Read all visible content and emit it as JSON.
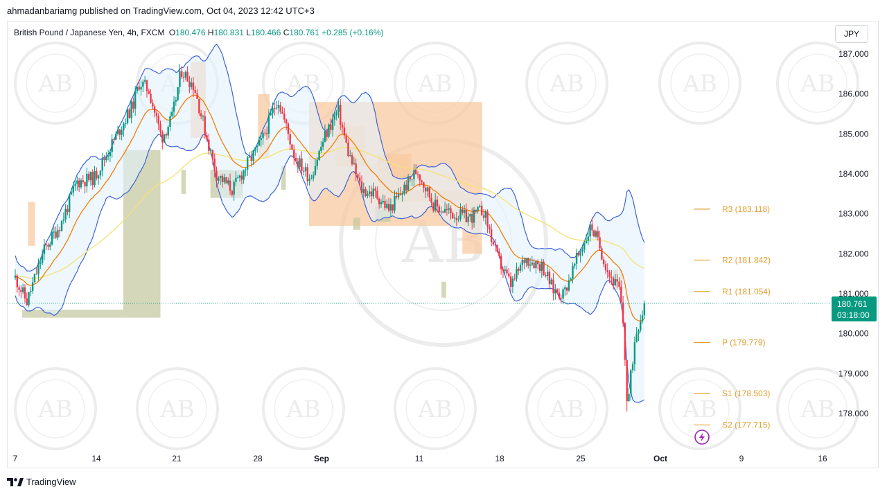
{
  "header": {
    "published_text": "ahmadanbariamg published on TradingView.com, Oct 04, 2023 12:42 UTC+3"
  },
  "legend": {
    "symbol": "British Pound / Japanese Yen, 4h, FXCM",
    "open_label": "O",
    "open": "180.476",
    "high_label": "H",
    "high": "180.831",
    "low_label": "L",
    "low": "180.466",
    "close_label": "C",
    "close": "180.761",
    "change": "+0.285 (+0.16%)"
  },
  "currency_button": "JPY",
  "price_tag": {
    "price": "180.761",
    "countdown": "03:18:00"
  },
  "footer": {
    "brand": "TradingView"
  },
  "colors": {
    "up": "#089981",
    "down": "#f23645",
    "ema_fast": "#f57c00",
    "ema_slow": "#f5e27a",
    "bands": "#3d62d6",
    "band_fill": "#e3f2fd",
    "supply": "#f8c9a0",
    "demand": "#c5c9a2",
    "pivot": "#e0a030",
    "tag": "#089981"
  },
  "watermark": {
    "icon": "arabian-business-academy-seal",
    "text": "AB"
  },
  "chart_data": {
    "type": "candlestick",
    "timeframe": "4h",
    "ylim": [
      177.3,
      187.5
    ],
    "y_ticks": [
      "187.000",
      "186.000",
      "185.000",
      "184.000",
      "183.000",
      "182.000",
      "181.000",
      "180.000",
      "179.000",
      "178.000"
    ],
    "x_ticks": [
      "7",
      "14",
      "21",
      "28",
      "Sep",
      "11",
      "18",
      "25",
      "Oct",
      "9",
      "16"
    ],
    "last_price": 180.761,
    "path_points": [
      {
        "d": 0,
        "p": 181.4
      },
      {
        "d": 1,
        "p": 180.8
      },
      {
        "d": 2.5,
        "p": 182.1
      },
      {
        "d": 4,
        "p": 182.8
      },
      {
        "d": 5.3,
        "p": 183.8
      },
      {
        "d": 6.8,
        "p": 183.9
      },
      {
        "d": 8.6,
        "p": 184.9
      },
      {
        "d": 10.1,
        "p": 185.7
      },
      {
        "d": 10.7,
        "p": 186.3
      },
      {
        "d": 11.5,
        "p": 186.1
      },
      {
        "d": 12.6,
        "p": 184.9
      },
      {
        "d": 13.5,
        "p": 185.4
      },
      {
        "d": 14.3,
        "p": 186.6
      },
      {
        "d": 15.4,
        "p": 186.2
      },
      {
        "d": 16.5,
        "p": 184.9
      },
      {
        "d": 17.3,
        "p": 184.0
      },
      {
        "d": 18.7,
        "p": 183.6
      },
      {
        "d": 20.1,
        "p": 184.3
      },
      {
        "d": 21.2,
        "p": 184.8
      },
      {
        "d": 22.6,
        "p": 185.9
      },
      {
        "d": 24.1,
        "p": 184.4
      },
      {
        "d": 25.4,
        "p": 183.9
      },
      {
        "d": 26.6,
        "p": 184.9
      },
      {
        "d": 27.8,
        "p": 185.6
      },
      {
        "d": 28.6,
        "p": 184.6
      },
      {
        "d": 29.8,
        "p": 183.6
      },
      {
        "d": 31.0,
        "p": 183.5
      },
      {
        "d": 32.2,
        "p": 183.1
      },
      {
        "d": 33.4,
        "p": 183.6
      },
      {
        "d": 34.6,
        "p": 184.1
      },
      {
        "d": 36.1,
        "p": 183.2
      },
      {
        "d": 37.6,
        "p": 183.0
      },
      {
        "d": 39.1,
        "p": 182.9
      },
      {
        "d": 40.3,
        "p": 183.1
      },
      {
        "d": 41.5,
        "p": 181.9
      },
      {
        "d": 42.7,
        "p": 181.2
      },
      {
        "d": 43.9,
        "p": 181.9
      },
      {
        "d": 45.4,
        "p": 181.7
      },
      {
        "d": 46.3,
        "p": 181.1
      },
      {
        "d": 47.2,
        "p": 181.0
      },
      {
        "d": 48.4,
        "p": 181.9
      },
      {
        "d": 49.6,
        "p": 182.7
      },
      {
        "d": 50.3,
        "p": 182.2
      },
      {
        "d": 51.1,
        "p": 181.5
      },
      {
        "d": 52.0,
        "p": 181.1
      },
      {
        "d": 52.4,
        "p": 180.1
      },
      {
        "d": 52.7,
        "p": 178.1
      },
      {
        "d": 53.4,
        "p": 180.0
      },
      {
        "d": 54.2,
        "p": 180.761
      }
    ],
    "pivots": [
      {
        "label": "R3 (183.118)",
        "value": 183.118
      },
      {
        "label": "R2 (181.842)",
        "value": 181.842
      },
      {
        "label": "R1 (181.054)",
        "value": 181.054
      },
      {
        "label": "P (179.779)",
        "value": 179.779
      },
      {
        "label": "S1 (178.503)",
        "value": 178.503
      },
      {
        "label": "S2 (177.715)",
        "value": 177.715
      }
    ],
    "supply_zones": [
      {
        "x0": 1.1,
        "x1": 1.7,
        "y0": 182.2,
        "y1": 183.3
      },
      {
        "x0": 15.1,
        "x1": 16.4,
        "y0": 184.9,
        "y1": 186.8
      },
      {
        "x0": 20.9,
        "x1": 21.9,
        "y0": 184.4,
        "y1": 186.0
      },
      {
        "x0": 25.3,
        "x1": 40.2,
        "y0": 182.7,
        "y1": 185.8
      },
      {
        "x0": 27.6,
        "x1": 30.1,
        "y0": 184.2,
        "y1": 185.2
      },
      {
        "x0": 31.2,
        "x1": 34.1,
        "y0": 183.3,
        "y1": 184.5
      },
      {
        "x0": 34.1,
        "x1": 38.5,
        "y0": 183.3,
        "y1": 183.6
      },
      {
        "x0": 38.5,
        "x1": 40.2,
        "y0": 182.0,
        "y1": 183.5
      },
      {
        "x0": 52.0,
        "x1": 52.3,
        "y0": 181.0,
        "y1": 181.6
      }
    ],
    "demand_zones": [
      {
        "x0": 0.6,
        "x1": 9.3,
        "y0": 180.4,
        "y1": 180.6
      },
      {
        "x0": 9.3,
        "x1": 12.5,
        "y0": 180.4,
        "y1": 184.6
      },
      {
        "x0": 14.3,
        "x1": 14.7,
        "y0": 183.5,
        "y1": 184.1
      },
      {
        "x0": 16.8,
        "x1": 19.6,
        "y0": 183.4,
        "y1": 184.1
      },
      {
        "x0": 22.9,
        "x1": 23.3,
        "y0": 183.6,
        "y1": 184.2
      },
      {
        "x0": 29.1,
        "x1": 29.7,
        "y0": 182.6,
        "y1": 182.9
      },
      {
        "x0": 31.0,
        "x1": 32.3,
        "y0": 182.8,
        "y1": 183.2
      },
      {
        "x0": 36.7,
        "x1": 37.1,
        "y0": 180.9,
        "y1": 181.3
      },
      {
        "x0": 51.5,
        "x1": 51.9,
        "y0": 181.1,
        "y1": 181.6
      }
    ]
  }
}
